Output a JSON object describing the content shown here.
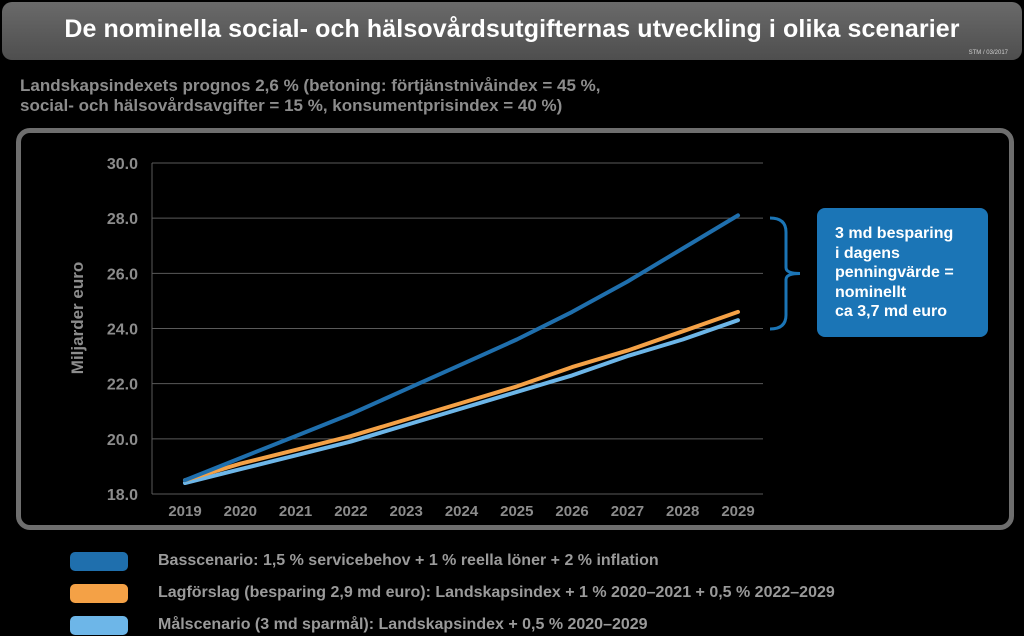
{
  "title": "De nominella social- och hälsovårdsutgifternas utveckling i olika scenarier",
  "source_note": "STM / 03/2017",
  "subtitle": [
    "Landskapsindexets prognos 2,6 % (betoning: förtjänstnivåindex = 45 %,",
    "social- och hälsovårdsavgifter = 15 %, konsumentprisindex = 40 %)"
  ],
  "callout": [
    "3 md besparing",
    "i dagens",
    "penningvärde =",
    "nominellt",
    "ca 3,7 md euro"
  ],
  "colors": {
    "background": "#000000",
    "title_bar": "#5e5e5e",
    "frame": "#6e6e6e",
    "text_muted": "#8c8c8c",
    "callout": "#1b75b6"
  },
  "chart_data": {
    "type": "line",
    "ylabel": "Miljarder euro",
    "xlabel": "",
    "ylim": [
      18,
      30
    ],
    "yticks": [
      "18.0",
      "20.0",
      "22.0",
      "24.0",
      "26.0",
      "28.0",
      "30.0"
    ],
    "categories": [
      "2019",
      "2020",
      "2021",
      "2022",
      "2023",
      "2024",
      "2025",
      "2026",
      "2027",
      "2028",
      "2029"
    ],
    "grid": true,
    "legend_position": "bottom",
    "series": [
      {
        "name": "Basscenario: 1,5 % servicebehov + 1 % reella löner + 2 % inflation",
        "color": "#1f6fad",
        "values": [
          18.5,
          19.3,
          20.1,
          20.9,
          21.8,
          22.7,
          23.6,
          24.6,
          25.7,
          26.9,
          28.1
        ]
      },
      {
        "name": "Lagförslag (besparing 2,9 md euro): Landskapsindex + 1 % 2020–2021 + 0,5 % 2022–2029",
        "color": "#f4a146",
        "values": [
          18.5,
          19.1,
          19.6,
          20.1,
          20.7,
          21.3,
          21.9,
          22.6,
          23.2,
          23.9,
          24.6
        ]
      },
      {
        "name": "Målscenario (3 md sparmål): Landskapsindex + 0,5 % 2020–2029",
        "color": "#6db6e8",
        "values": [
          18.4,
          18.9,
          19.4,
          19.9,
          20.5,
          21.1,
          21.7,
          22.3,
          23.0,
          23.6,
          24.3
        ]
      }
    ]
  }
}
